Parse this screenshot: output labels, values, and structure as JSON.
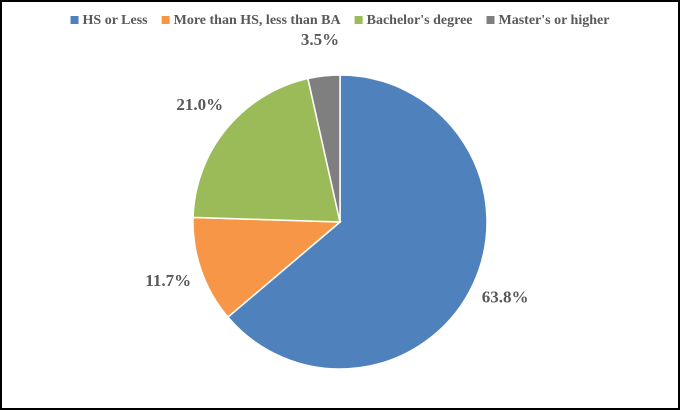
{
  "chart_data": {
    "type": "pie",
    "categories": [
      "HS or Less",
      "More than HS, less than BA",
      "Bachelor's degree",
      "Master's or higher"
    ],
    "values": [
      63.8,
      11.7,
      21.0,
      3.5
    ],
    "value_labels": [
      "63.8%",
      "11.7%",
      "21.0%",
      "3.5%"
    ],
    "colors": [
      "#4f81bd",
      "#f79646",
      "#9bbb59",
      "#7f7f7f"
    ],
    "legend": "top"
  }
}
